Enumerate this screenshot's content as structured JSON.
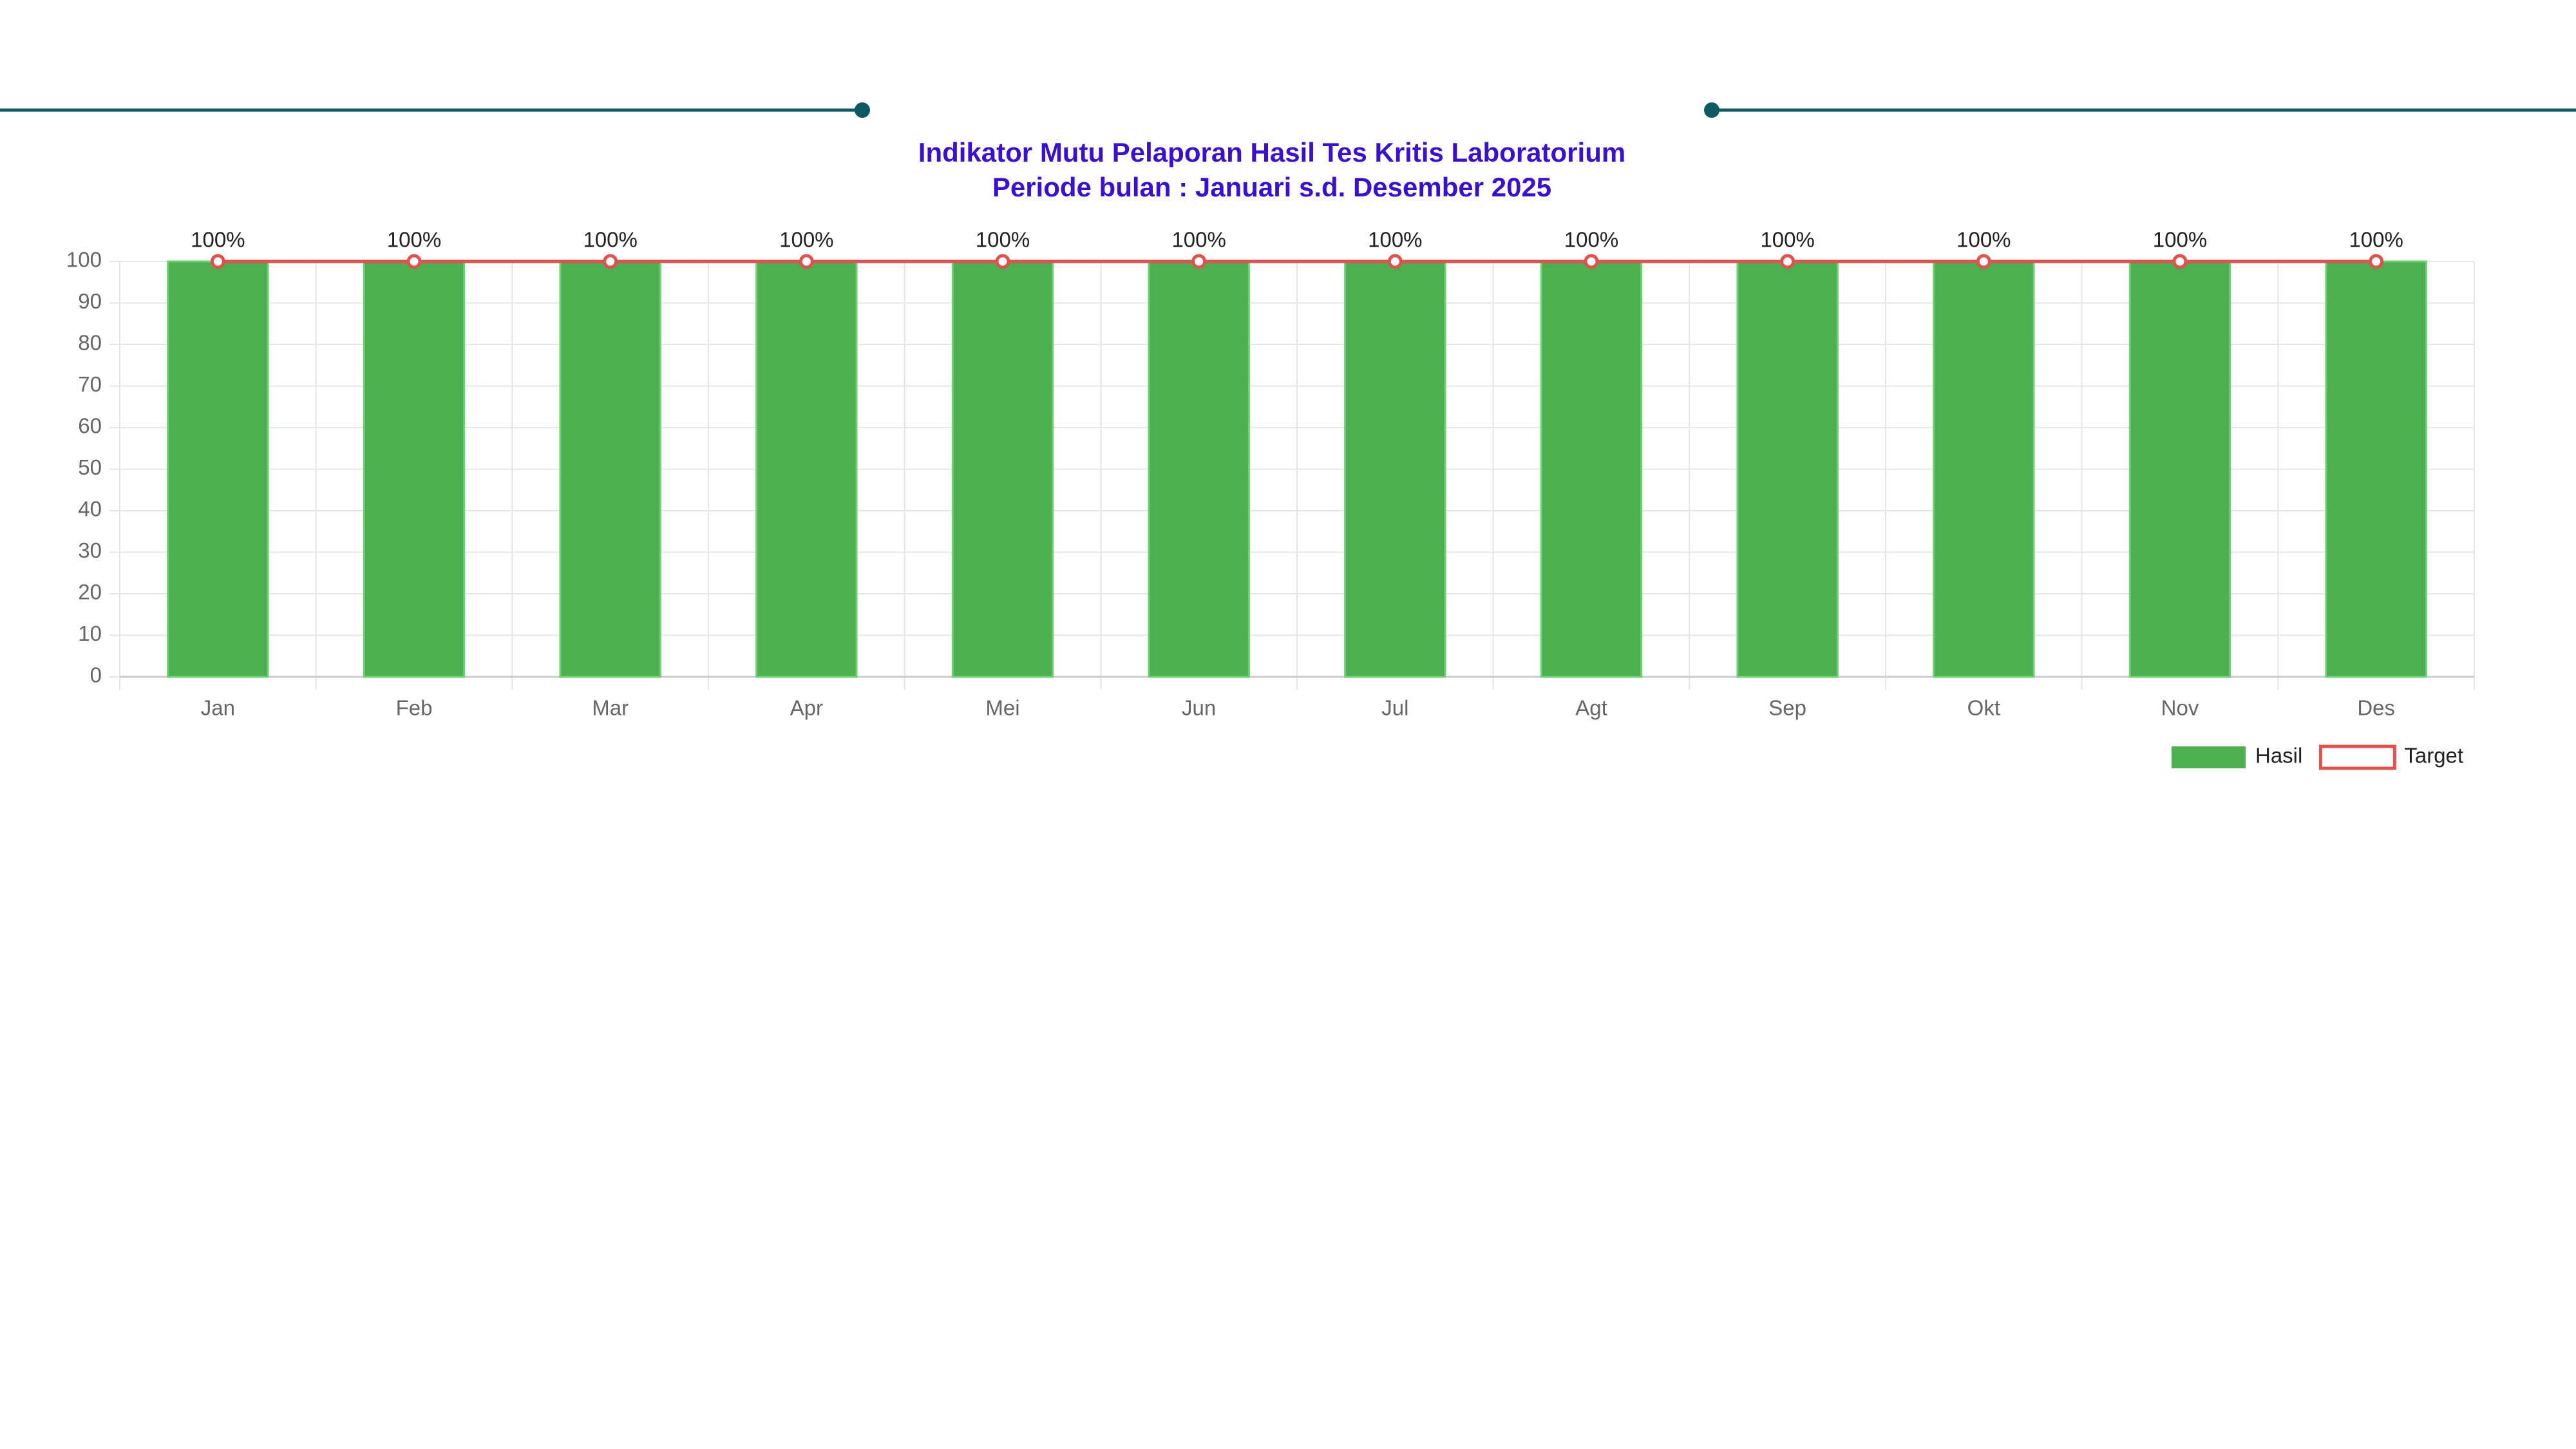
{
  "chart_data": {
    "type": "bar",
    "title": "Indikator Mutu Pelaporan Hasil Tes Kritis Laboratorium",
    "subtitle": "Periode bulan : Januari s.d. Desember 2025",
    "categories": [
      "Jan",
      "Feb",
      "Mar",
      "Apr",
      "Mei",
      "Jun",
      "Jul",
      "Agt",
      "Sep",
      "Okt",
      "Nov",
      "Des"
    ],
    "series": [
      {
        "name": "Hasil",
        "type": "bar",
        "color": "#4caf50",
        "values": [
          100,
          100,
          100,
          100,
          100,
          100,
          100,
          100,
          100,
          100,
          100,
          100
        ],
        "value_labels": [
          "100%",
          "100%",
          "100%",
          "100%",
          "100%",
          "100%",
          "100%",
          "100%",
          "100%",
          "100%",
          "100%",
          "100%"
        ]
      },
      {
        "name": "Target",
        "type": "line",
        "color": "#e0524f",
        "values": [
          100,
          100,
          100,
          100,
          100,
          100,
          100,
          100,
          100,
          100,
          100,
          100
        ]
      }
    ],
    "ylim": [
      0,
      100
    ],
    "yticks": [
      0,
      10,
      20,
      30,
      40,
      50,
      60,
      70,
      80,
      90,
      100
    ],
    "grid": true,
    "legend": "bottom-right"
  }
}
